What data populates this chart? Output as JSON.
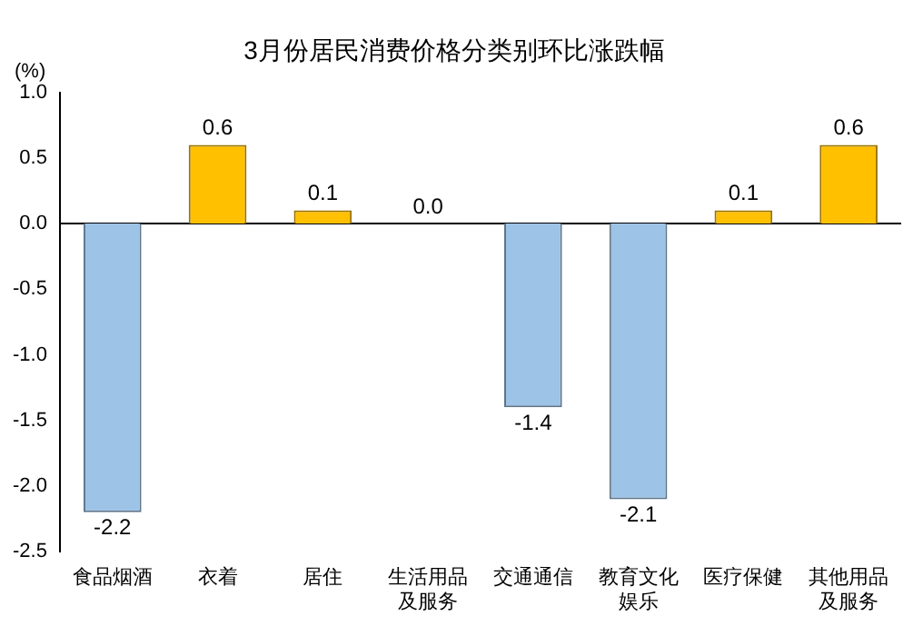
{
  "chart_data": {
    "type": "bar",
    "title": "3月份居民消费价格分类别环比涨跌幅",
    "ylabel": "(%)",
    "categories": [
      "食品烟酒",
      "衣着",
      "居住",
      "生活用品及服务",
      "交通通信",
      "教育文化娱乐",
      "医疗保健",
      "其他用品及服务"
    ],
    "values": [
      -2.2,
      0.6,
      0.1,
      0.0,
      -1.4,
      -2.1,
      0.1,
      0.6
    ],
    "colors": [
      "#9dc3e6",
      "#ffc000",
      "#ffc000",
      "#ffc000",
      "#9dc3e6",
      "#9dc3e6",
      "#ffc000",
      "#ffc000"
    ],
    "value_labels": [
      "-2.2",
      "0.6",
      "0.1",
      "0.0",
      "-1.4",
      "-2.1",
      "0.1",
      "0.6"
    ],
    "ylim": [
      -2.5,
      1.0
    ],
    "yticks": [
      {
        "value": -2.5,
        "label": "-2.5"
      },
      {
        "value": -2.0,
        "label": "-2.0"
      },
      {
        "value": -1.5,
        "label": "-1.5"
      },
      {
        "value": -1.0,
        "label": "-1.0"
      },
      {
        "value": -0.5,
        "label": "-0.5"
      },
      {
        "value": 0,
        "label": "0.0"
      },
      {
        "value": 0.5,
        "label": "0.5"
      },
      {
        "value": 1.0,
        "label": "1.0"
      }
    ],
    "legend": false
  }
}
